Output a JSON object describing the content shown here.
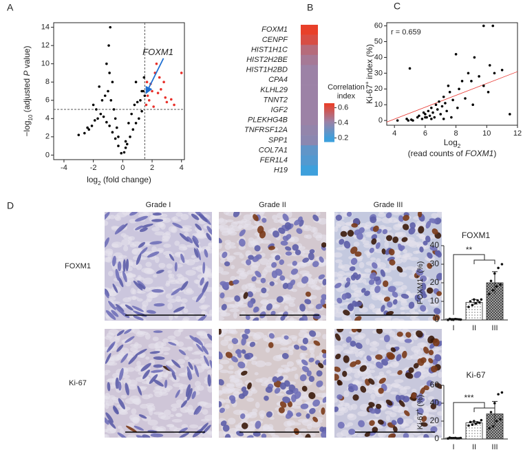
{
  "panel_labels": [
    "A",
    "B",
    "C",
    "D"
  ],
  "chart_data": [
    {
      "type": "scatter",
      "xlabel": [
        "log",
        "2",
        " (fold change)"
      ],
      "ylabel": [
        "−log",
        "10",
        " (adjusted ",
        "P",
        " value)"
      ],
      "xlim": [
        -4.7,
        4.2
      ],
      "ylim": [
        -0.5,
        14.5
      ],
      "xticks": [
        -4,
        -2,
        0,
        2,
        4
      ],
      "yticks": [
        0,
        2,
        4,
        6,
        8,
        10,
        12,
        14
      ],
      "vlines": [
        1.5
      ],
      "hlines": [
        5
      ],
      "series": [
        {
          "color": "#000000",
          "x": [
            -0.1,
            0.1,
            0.2,
            -0.3,
            0.3,
            -0.5,
            0.5,
            -0.7,
            0.7,
            -0.9,
            0.9,
            -1.1,
            1.1,
            -1.3,
            1.3,
            -1.5,
            -1.7,
            -1.9,
            -2.1,
            -2.3,
            -2.6,
            -3.0,
            -0.8,
            -0.6,
            -1.0,
            -1.2,
            -1.4,
            -0.4,
            0.4,
            0.6,
            0.8,
            1.0,
            1.2,
            1.4,
            -0.9,
            -0.7,
            -1.1,
            -1.6,
            -2.0,
            -0.5,
            0.9,
            1.3,
            -0.3,
            0.2,
            -1.8,
            -2.4,
            1.5,
            1.45,
            -0.95,
            -0.85
          ],
          "y": [
            0.2,
            0.3,
            0.8,
            1.0,
            1.2,
            1.8,
            2.0,
            2.5,
            2.8,
            3.2,
            3.5,
            3.6,
            4.0,
            4.2,
            4.8,
            4.5,
            4.0,
            3.8,
            3.2,
            2.8,
            2.4,
            2.2,
            6,
            5,
            7,
            6.5,
            6,
            3,
            3.5,
            4.5,
            5.5,
            5.8,
            6,
            7,
            9,
            8,
            10,
            7.5,
            5.5,
            4,
            8,
            7,
            2,
            1.5,
            5,
            3,
            6.5,
            8.5,
            12,
            14
          ]
        },
        {
          "color": "#e8302a",
          "x": [
            1.6,
            1.8,
            2.0,
            2.2,
            2.5,
            2.8,
            3.0,
            2.3,
            1.7,
            2.6,
            3.3,
            4.0,
            1.9,
            2.1,
            2.4,
            1.65,
            3.5,
            2.9
          ],
          "y": [
            5.5,
            6,
            7,
            9,
            8.5,
            8,
            5.8,
            10,
            6.5,
            7.2,
            6.1,
            9,
            7.8,
            5.3,
            6.8,
            8,
            5.5,
            6.3
          ]
        }
      ],
      "annotation": {
        "text": "FOXM1",
        "x": 2.4,
        "y": 11.2,
        "arrow_to": [
          1.6,
          6.8
        ]
      }
    },
    {
      "type": "heatmap",
      "genes": [
        "FOXM1",
        "CENPF",
        "HIST1H1C",
        "HIST2H2BE",
        "HIST1H2BD",
        "CPA4",
        "KLHL29",
        "TNNT2",
        "IGF2",
        "PLEKHG4B",
        "TNFRSF12A",
        "SPP1",
        "COL7A1",
        "FER1L4",
        "H19"
      ],
      "values": [
        0.65,
        0.6,
        0.5,
        0.45,
        0.42,
        0.42,
        0.42,
        0.42,
        0.42,
        0.42,
        0.4,
        0.38,
        0.28,
        0.25,
        0.2
      ],
      "colorbar_title": [
        "Correlation",
        "index"
      ],
      "clim": [
        0.15,
        0.66
      ],
      "cticks": [
        0.2,
        0.4,
        0.6
      ],
      "colorscale": [
        [
          0.2,
          "#3ea0dc"
        ],
        [
          0.42,
          "#9c82a6"
        ],
        [
          0.65,
          "#e8402a"
        ]
      ]
    },
    {
      "type": "scatter",
      "xlabel": [
        "Log",
        "2"
      ],
      "xlabel2": [
        "(read counts of ",
        "FOXM1",
        ")"
      ],
      "ylabel": [
        "Ki-67",
        "+",
        " index (%)"
      ],
      "xlim": [
        3.5,
        12
      ],
      "ylim": [
        -3,
        62
      ],
      "xticks": [
        4,
        6,
        8,
        10,
        12
      ],
      "yticks": [
        0,
        10,
        20,
        30,
        40,
        50,
        60
      ],
      "annotation_text": "r = 0.659",
      "series": [
        {
          "color": "#000000",
          "x": [
            4.2,
            4.8,
            5.0,
            5.2,
            5.5,
            5.6,
            5.8,
            5.9,
            6.0,
            6.1,
            6.2,
            6.3,
            6.4,
            6.5,
            6.6,
            6.7,
            6.8,
            6.9,
            7.0,
            7.1,
            7.2,
            7.3,
            7.4,
            7.5,
            7.6,
            7.8,
            8.0,
            8.2,
            8.4,
            8.6,
            8.8,
            9.0,
            9.2,
            9.5,
            9.8,
            10.4,
            10.2,
            10.5,
            11.0,
            11.5,
            4.9,
            6.4,
            7.7,
            8.1,
            9.1,
            9.8,
            10.1,
            7.2,
            5.1,
            6.0
          ],
          "y": [
            0,
            1,
            33,
            0,
            2,
            3,
            1,
            5,
            4,
            2,
            6,
            3,
            8,
            5,
            2,
            10,
            7,
            12,
            4,
            9,
            15,
            11,
            6,
            22,
            18,
            13,
            42,
            20,
            25,
            14,
            30,
            25,
            40,
            28,
            60,
            60,
            35,
            30,
            32,
            4,
            0,
            1,
            2,
            8,
            10,
            22,
            18,
            1,
            0.5,
            2
          ]
        }
      ],
      "fit": {
        "color": "#e8302a",
        "x": [
          3.5,
          12
        ],
        "y": [
          -1,
          31
        ]
      }
    },
    {
      "type": "bar",
      "title": "FOXM1",
      "ylabel": [
        "FOXM1",
        "+",
        " (%)"
      ],
      "categories": [
        "I",
        "II",
        "III"
      ],
      "values": [
        0.5,
        9.5,
        20
      ],
      "errors": [
        0.3,
        1.5,
        6
      ],
      "points": [
        [
          0,
          0.2,
          0.5,
          0.3,
          0.6,
          0.1,
          0.4,
          0.2
        ],
        [
          7,
          8,
          9,
          9.5,
          10,
          11,
          10.5,
          11
        ],
        [
          14,
          16,
          18,
          19,
          21,
          25,
          28,
          30
        ]
      ],
      "ylim": [
        0,
        40
      ],
      "yticks": [
        0,
        10,
        20,
        30,
        40
      ],
      "significance": "**"
    },
    {
      "type": "bar",
      "title": "Ki-67",
      "ylabel": [
        "Ki-67",
        "+",
        " (%)"
      ],
      "categories": [
        "I",
        "II",
        "III"
      ],
      "values": [
        1,
        18,
        28
      ],
      "errors": [
        0.4,
        1.5,
        14
      ],
      "points": [
        [
          0.5,
          1,
          1.2,
          0.8,
          1.5,
          1,
          0.7,
          1.1
        ],
        [
          15,
          16,
          17,
          18,
          19,
          20,
          18.5,
          21
        ],
        [
          12,
          14,
          20,
          22,
          30,
          40,
          50,
          52
        ]
      ],
      "ylim": [
        0,
        60
      ],
      "yticks": [
        0,
        20,
        40,
        60
      ],
      "significance": "***"
    }
  ],
  "images": {
    "columns": [
      "Grade I",
      "Grade II",
      "Grade III"
    ],
    "rows": [
      "FOXM1",
      "Ki-67"
    ]
  }
}
